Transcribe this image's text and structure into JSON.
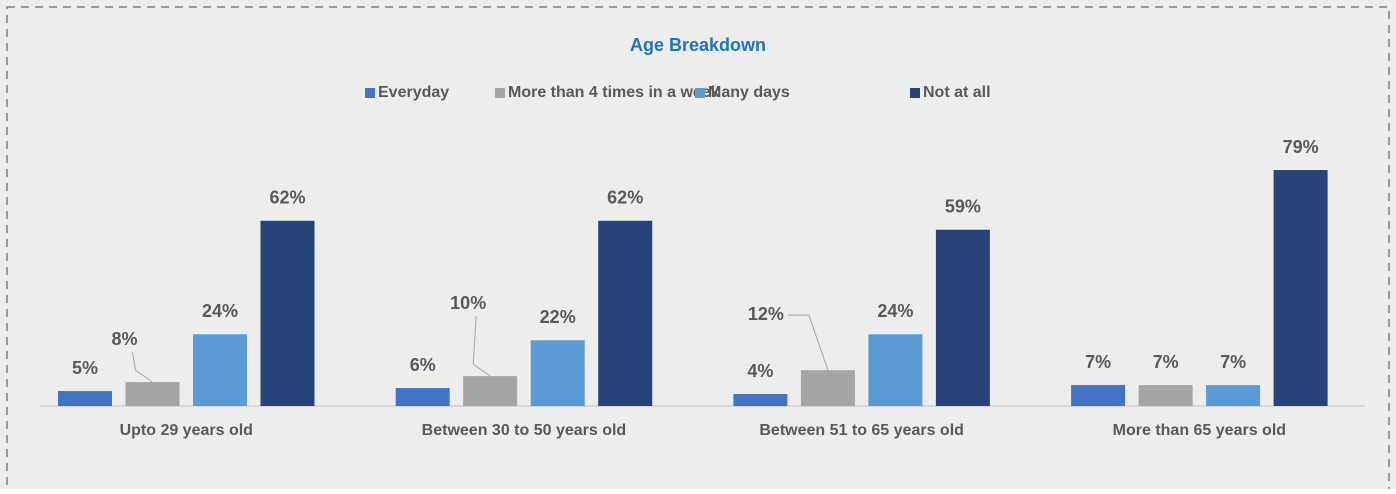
{
  "chart_data": {
    "type": "bar",
    "title": "Age Breakdown",
    "categories": [
      "Upto 29 years old",
      "Between 30 to 50 years old",
      "Between 51 to 65 years old",
      "More than 65 years old"
    ],
    "series": [
      {
        "name": "Everyday",
        "color": "#4472c4",
        "values": [
          5,
          6,
          4,
          7
        ],
        "value_labels": [
          "5%",
          "6%",
          "4%",
          "7%"
        ]
      },
      {
        "name": "More than 4 times in a week",
        "color": "#a5a5a5",
        "values": [
          8,
          10,
          12,
          7
        ],
        "value_labels": [
          "8%",
          "10%",
          "12%",
          "7%"
        ]
      },
      {
        "name": "Many days",
        "color": "#5b9bd5",
        "values": [
          24,
          22,
          24,
          7
        ],
        "value_labels": [
          "24%",
          "22%",
          "24%",
          "7%"
        ]
      },
      {
        "name": "Not at all",
        "color": "#264478",
        "values": [
          62,
          62,
          59,
          79
        ],
        "value_labels": [
          "62%",
          "62%",
          "59%",
          "79%"
        ]
      }
    ],
    "legend": "top"
  }
}
